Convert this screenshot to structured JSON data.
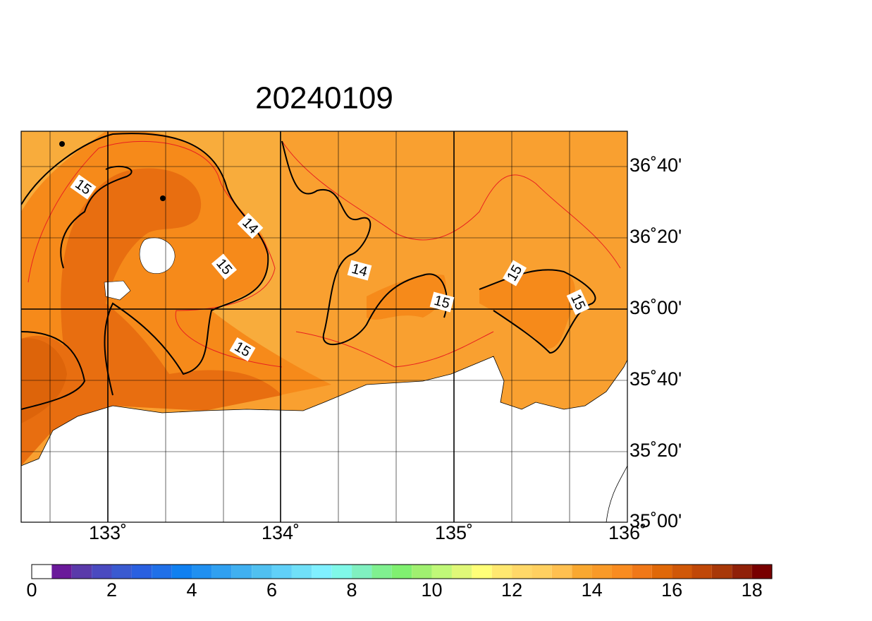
{
  "title": "20240109",
  "lat_labels": [
    "36˚40'",
    "36˚20'",
    "36˚00'",
    "35˚40'",
    "35˚20'",
    "35˚00'"
  ],
  "lon_labels": [
    "133˚",
    "134˚",
    "135˚",
    "136˚"
  ],
  "contour_labels": [
    "15",
    "14",
    "15",
    "14",
    "15",
    "15",
    "15",
    "15"
  ],
  "colorbar": {
    "labels": [
      "0",
      "2",
      "4",
      "6",
      "8",
      "10",
      "12",
      "14",
      "16",
      "18"
    ],
    "colors": [
      "#ffffff",
      "#6a1a9a",
      "#5a3aaa",
      "#4a4ac0",
      "#3a5ad0",
      "#2a60e0",
      "#2070e8",
      "#1080f0",
      "#2090f0",
      "#30a0f0",
      "#40b0f0",
      "#50c0f0",
      "#60d0f8",
      "#70e0f8",
      "#80f0ff",
      "#80f8e8",
      "#80f0c0",
      "#80f090",
      "#80f070",
      "#a0f070",
      "#c0f878",
      "#e0f878",
      "#ffff78",
      "#ffe870",
      "#ffd868",
      "#ffd060",
      "#ffc050",
      "#f9a830",
      "#f99a28",
      "#f98c20",
      "#f07818",
      "#e06808",
      "#d05808",
      "#c04808",
      "#a83808",
      "#902008",
      "#780000"
    ]
  }
}
